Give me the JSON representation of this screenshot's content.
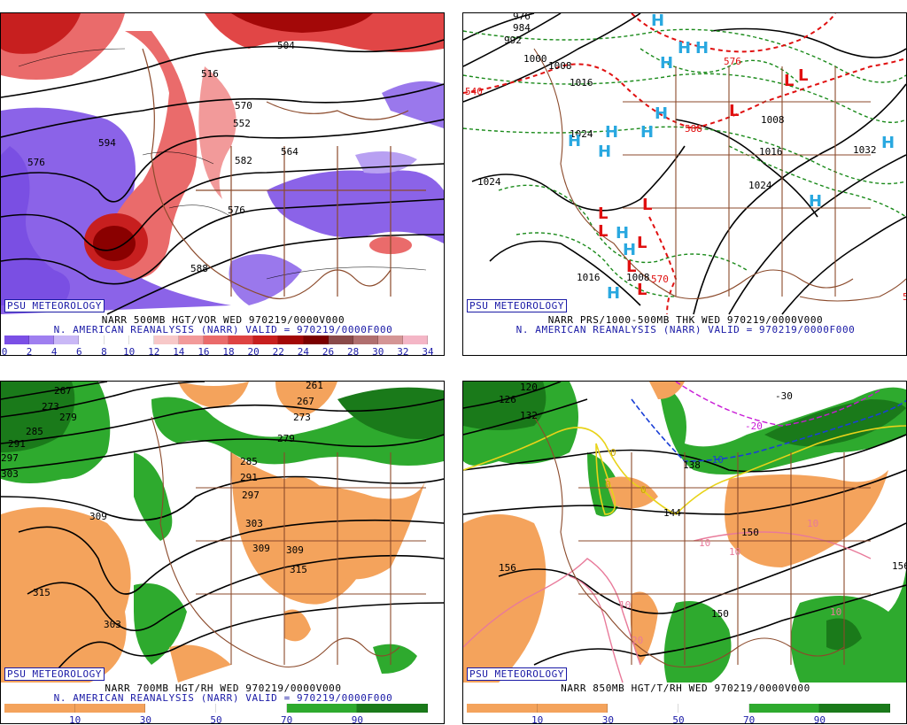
{
  "badge": "PSU METEOROLOGY",
  "panels": [
    {
      "caption1": "NARR 500MB HGT/VOR WED 970219/0000V000",
      "caption2": "N. AMERICAN REANALYSIS (NARR) VALID = 970219/0000F000",
      "colorbar_colors": [
        "#7b4fe6",
        "#9f7ff0",
        "#c9b8f6",
        "#ffffff",
        "#ffffff",
        "#ffffff",
        "#f7c8c8",
        "#f29a9a",
        "#ea6b6b",
        "#de4343",
        "#c71f1f",
        "#a30808",
        "#7a0000",
        "#8a4a4a",
        "#b06f6f",
        "#d49595",
        "#f4b6c6"
      ],
      "colorbar_ticks": [
        "0",
        "2",
        "4",
        "6",
        "8",
        "10",
        "12",
        "14",
        "16",
        "18",
        "20",
        "22",
        "24",
        "26",
        "28",
        "30",
        "32",
        "34"
      ],
      "contour_labels": [
        "504",
        "516",
        "552",
        "576",
        "594",
        "564",
        "576",
        "582",
        "588",
        "570"
      ]
    },
    {
      "caption1": "NARR PRS/1000-500MB THK WED 970219/0000V000",
      "caption2": "N. AMERICAN REANALYSIS (NARR) VALID = 970219/0000F000",
      "contour_labels": [
        "976",
        "984",
        "992",
        "1000",
        "1008",
        "1016",
        "1024",
        "1024",
        "1016",
        "1008",
        "1024",
        "1016",
        "1032",
        "1008",
        "540",
        "576",
        "588",
        "570",
        "528"
      ],
      "highs": [
        "H",
        "H",
        "H",
        "H",
        "H",
        "H",
        "H",
        "H",
        "H",
        "H",
        "H",
        "H",
        "H",
        "H"
      ],
      "lows": [
        "L",
        "L",
        "L",
        "L",
        "L",
        "L",
        "L",
        "L",
        "L"
      ]
    },
    {
      "caption1": "NARR 700MB HGT/RH WED 970219/0000V000",
      "caption2": "N. AMERICAN REANALYSIS (NARR) VALID = 970219/0000F000",
      "colorbar_ticks": [
        "10",
        "30",
        "50",
        "70",
        "90"
      ],
      "contour_labels": [
        "267",
        "273",
        "279",
        "285",
        "291",
        "297",
        "303",
        "309",
        "315",
        "309",
        "303",
        "261",
        "267",
        "273",
        "279",
        "285",
        "291",
        "297",
        "303",
        "309",
        "315"
      ]
    },
    {
      "caption1": "NARR 850MB HGT/T/RH WED 970219/0000V000",
      "contour_labels": [
        "120",
        "126",
        "132",
        "138",
        "144",
        "150",
        "156",
        "156",
        "150",
        "10",
        "10",
        "10",
        "20",
        "10",
        "10",
        "0",
        "0",
        "0",
        "-10",
        "-20",
        "-30"
      ],
      "colorbar_ticks": [
        "10",
        "30",
        "50",
        "70",
        "90"
      ]
    }
  ]
}
